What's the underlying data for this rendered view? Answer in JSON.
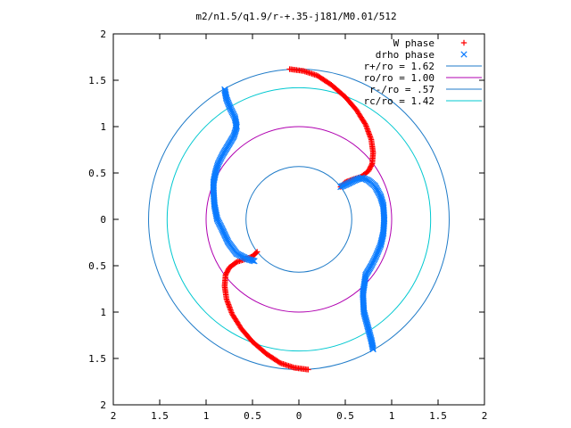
{
  "chart_data": {
    "type": "scatter",
    "title": "m2/n1.5/q1.9/r-+.35-j181/M0.01/512",
    "xlabel": "",
    "ylabel": "",
    "xlim": [
      -2,
      2
    ],
    "ylim": [
      -2,
      2
    ],
    "x_tick_labels": [
      "2",
      "1.5",
      "1",
      "0.5",
      "0",
      "0.5",
      "1",
      "1.5",
      "2"
    ],
    "y_tick_labels": [
      "2",
      "1.5",
      "1",
      "0.5",
      "0",
      "0.5",
      "1",
      "1.5",
      "2"
    ],
    "grid": false,
    "legend_position": "top-right",
    "series": [
      {
        "name": "W phase",
        "kind": "points",
        "marker": "plus",
        "color": "#ff0000",
        "branch_a": {
          "x": [
            -0.1,
            0.05,
            0.2,
            0.35,
            0.5,
            0.62,
            0.72,
            0.78,
            0.8,
            0.79,
            0.75,
            0.67,
            0.58,
            0.5,
            0.45
          ],
          "y": [
            1.62,
            1.6,
            1.55,
            1.45,
            1.32,
            1.18,
            1.02,
            0.86,
            0.72,
            0.6,
            0.52,
            0.46,
            0.43,
            0.4,
            0.35
          ]
        },
        "branch_b": {
          "x": [
            0.1,
            -0.05,
            -0.2,
            -0.35,
            -0.5,
            -0.62,
            -0.72,
            -0.78,
            -0.8,
            -0.79,
            -0.75,
            -0.67,
            -0.58,
            -0.5,
            -0.45
          ],
          "y": [
            -1.62,
            -1.6,
            -1.55,
            -1.45,
            -1.32,
            -1.18,
            -1.02,
            -0.86,
            -0.72,
            -0.6,
            -0.52,
            -0.46,
            -0.43,
            -0.4,
            -0.35
          ]
        }
      },
      {
        "name": "drho phase",
        "kind": "points",
        "marker": "cross",
        "color": "#0a7bff",
        "branch_a": {
          "x": [
            -0.8,
            -0.78,
            -0.74,
            -0.69,
            -0.67,
            -0.7,
            -0.76,
            -0.82,
            -0.87,
            -0.9,
            -0.92,
            -0.92,
            -0.91,
            -0.88,
            -0.83,
            -0.76,
            -0.67,
            -0.55,
            -0.48
          ],
          "y": [
            1.4,
            1.3,
            1.2,
            1.1,
            1.0,
            0.9,
            0.8,
            0.7,
            0.6,
            0.5,
            0.4,
            0.3,
            0.15,
            0.0,
            -0.1,
            -0.25,
            -0.37,
            -0.43,
            -0.45
          ]
        },
        "branch_b": {
          "x": [
            0.45,
            0.52,
            0.6,
            0.68,
            0.75,
            0.82,
            0.88,
            0.91,
            0.92,
            0.91,
            0.88,
            0.83,
            0.78,
            0.72,
            0.69,
            0.7,
            0.74,
            0.78,
            0.8
          ],
          "y": [
            0.35,
            0.38,
            0.42,
            0.45,
            0.42,
            0.36,
            0.25,
            0.15,
            0.0,
            -0.15,
            -0.28,
            -0.4,
            -0.5,
            -0.6,
            -0.8,
            -1.0,
            -1.15,
            -1.3,
            -1.4
          ]
        }
      },
      {
        "name": "r+/ro = 1.62",
        "kind": "circle",
        "radius": 1.62,
        "color": "#1f7bc8"
      },
      {
        "name": "ro/ro = 1.00",
        "kind": "circle",
        "radius": 1.0,
        "color": "#b000b0"
      },
      {
        "name": "r-/ro = .57",
        "kind": "circle",
        "radius": 0.57,
        "color": "#1f7bc8"
      },
      {
        "name": "rc/ro = 1.42",
        "kind": "circle",
        "radius": 1.42,
        "color": "#00c8d0"
      }
    ]
  }
}
